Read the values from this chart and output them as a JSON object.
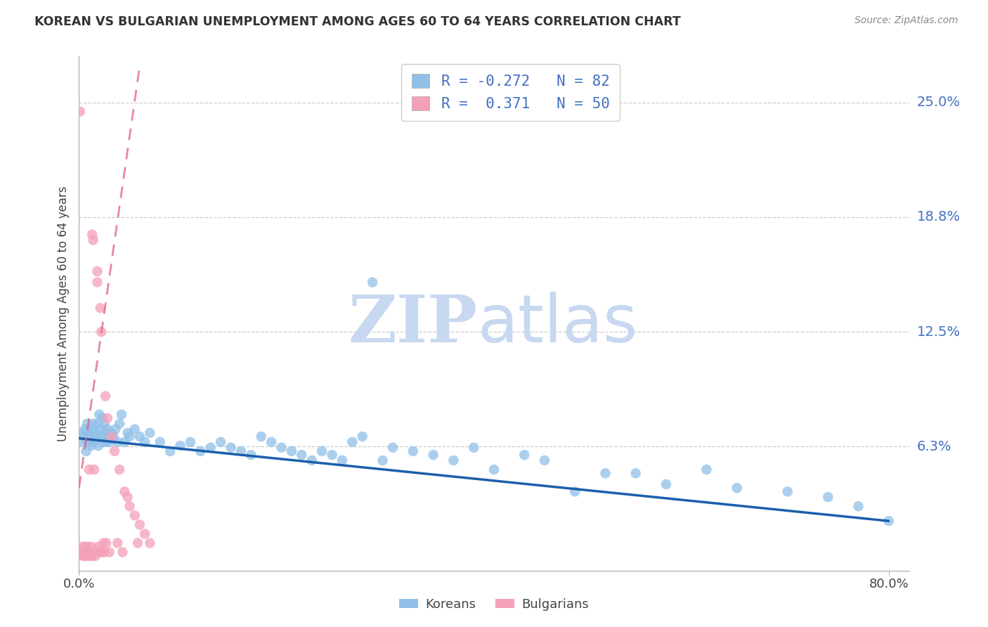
{
  "title": "KOREAN VS BULGARIAN UNEMPLOYMENT AMONG AGES 60 TO 64 YEARS CORRELATION CHART",
  "source": "Source: ZipAtlas.com",
  "ylabel": "Unemployment Among Ages 60 to 64 years",
  "xlim": [
    0.0,
    0.82
  ],
  "ylim": [
    -0.005,
    0.275
  ],
  "ytick_vals": [
    0.0625,
    0.125,
    0.1875,
    0.25
  ],
  "ytick_labels": [
    "6.3%",
    "12.5%",
    "18.8%",
    "25.0%"
  ],
  "xtick_vals": [
    0.0,
    0.8
  ],
  "xtick_labels": [
    "0.0%",
    "80.0%"
  ],
  "korean_R": -0.272,
  "korean_N": 82,
  "bulgarian_R": 0.371,
  "bulgarian_N": 50,
  "korean_color": "#90C0E8",
  "bulgarian_color": "#F4A0B8",
  "korean_line_color": "#1A5FAB",
  "bulgarian_line_color": "#E06080",
  "label_color": "#4472C4",
  "watermark_color": "#C8D8F0",
  "korean_x": [
    0.003,
    0.004,
    0.005,
    0.006,
    0.007,
    0.008,
    0.009,
    0.01,
    0.011,
    0.012,
    0.013,
    0.014,
    0.015,
    0.016,
    0.017,
    0.018,
    0.019,
    0.02,
    0.021,
    0.022,
    0.023,
    0.024,
    0.025,
    0.026,
    0.027,
    0.028,
    0.029,
    0.03,
    0.032,
    0.034,
    0.036,
    0.038,
    0.04,
    0.042,
    0.045,
    0.048,
    0.05,
    0.055,
    0.06,
    0.065,
    0.07,
    0.08,
    0.09,
    0.1,
    0.11,
    0.12,
    0.13,
    0.14,
    0.15,
    0.16,
    0.17,
    0.18,
    0.19,
    0.2,
    0.21,
    0.22,
    0.23,
    0.24,
    0.25,
    0.26,
    0.27,
    0.28,
    0.29,
    0.3,
    0.31,
    0.33,
    0.35,
    0.37,
    0.39,
    0.41,
    0.44,
    0.46,
    0.49,
    0.52,
    0.55,
    0.58,
    0.62,
    0.65,
    0.7,
    0.74,
    0.77,
    0.8
  ],
  "korean_y": [
    0.07,
    0.065,
    0.068,
    0.072,
    0.06,
    0.075,
    0.065,
    0.068,
    0.07,
    0.063,
    0.072,
    0.075,
    0.065,
    0.07,
    0.068,
    0.075,
    0.063,
    0.08,
    0.072,
    0.068,
    0.078,
    0.065,
    0.075,
    0.07,
    0.065,
    0.072,
    0.068,
    0.065,
    0.07,
    0.068,
    0.072,
    0.065,
    0.075,
    0.08,
    0.065,
    0.07,
    0.068,
    0.072,
    0.068,
    0.065,
    0.07,
    0.065,
    0.06,
    0.063,
    0.065,
    0.06,
    0.062,
    0.065,
    0.062,
    0.06,
    0.058,
    0.068,
    0.065,
    0.062,
    0.06,
    0.058,
    0.055,
    0.06,
    0.058,
    0.055,
    0.065,
    0.068,
    0.152,
    0.055,
    0.062,
    0.06,
    0.058,
    0.055,
    0.062,
    0.05,
    0.058,
    0.055,
    0.038,
    0.048,
    0.048,
    0.042,
    0.05,
    0.04,
    0.038,
    0.035,
    0.03,
    0.022
  ],
  "bulgarian_x": [
    0.001,
    0.002,
    0.003,
    0.004,
    0.005,
    0.006,
    0.006,
    0.007,
    0.007,
    0.008,
    0.008,
    0.009,
    0.01,
    0.01,
    0.011,
    0.012,
    0.013,
    0.013,
    0.014,
    0.015,
    0.016,
    0.017,
    0.018,
    0.018,
    0.019,
    0.02,
    0.021,
    0.022,
    0.023,
    0.024,
    0.025,
    0.026,
    0.027,
    0.028,
    0.03,
    0.032,
    0.035,
    0.038,
    0.04,
    0.043,
    0.045,
    0.048,
    0.05,
    0.055,
    0.058,
    0.06,
    0.065,
    0.07,
    0.005,
    0.01
  ],
  "bulgarian_y": [
    0.245,
    0.005,
    0.008,
    0.003,
    0.005,
    0.003,
    0.008,
    0.003,
    0.005,
    0.003,
    0.008,
    0.003,
    0.005,
    0.05,
    0.003,
    0.008,
    0.003,
    0.178,
    0.175,
    0.05,
    0.003,
    0.005,
    0.158,
    0.152,
    0.008,
    0.005,
    0.138,
    0.125,
    0.005,
    0.01,
    0.005,
    0.09,
    0.01,
    0.078,
    0.005,
    0.068,
    0.06,
    0.01,
    0.05,
    0.005,
    0.038,
    0.035,
    0.03,
    0.025,
    0.01,
    0.02,
    0.015,
    0.01,
    0.003,
    0.005
  ],
  "korean_trend_x": [
    0.0,
    0.8
  ],
  "korean_trend_y": [
    0.067,
    0.022
  ],
  "bulgarian_trend_x": [
    0.0,
    0.06
  ],
  "bulgarian_trend_y": [
    0.04,
    0.27
  ]
}
